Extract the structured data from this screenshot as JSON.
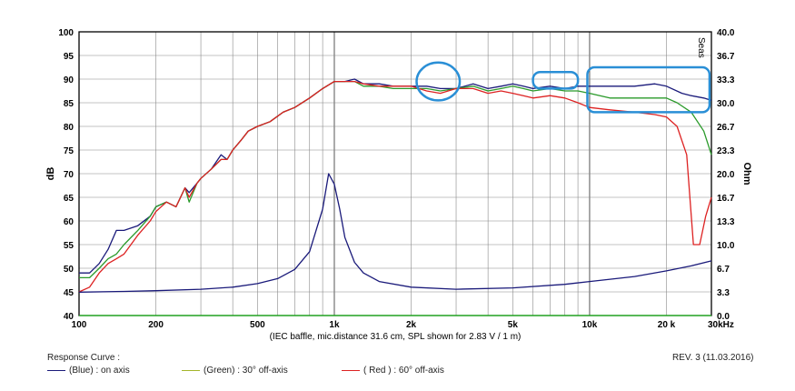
{
  "chart_data": {
    "type": "line",
    "title": "",
    "xlabel": "(IEC baffle, mic.distance 31.6 cm, SPL shown for 2.83 V / 1 m)",
    "ylabel": "dB",
    "y2label": "Ohm",
    "xscale": "log",
    "xlim": [
      100,
      30000
    ],
    "ylim": [
      40,
      100
    ],
    "y2lim": [
      0,
      40
    ],
    "x_ticks": [
      {
        "v": 100,
        "t": "100"
      },
      {
        "v": 200,
        "t": "200"
      },
      {
        "v": 500,
        "t": "500"
      },
      {
        "v": 1000,
        "t": "1k"
      },
      {
        "v": 2000,
        "t": "2k"
      },
      {
        "v": 5000,
        "t": "5k"
      },
      {
        "v": 10000,
        "t": "10k"
      },
      {
        "v": 20000,
        "t": "20 k"
      },
      {
        "v": 30000,
        "t": "30kHz"
      }
    ],
    "y_ticks": [
      "100",
      "95",
      "90",
      "85",
      "80",
      "75",
      "70",
      "65",
      "60",
      "55",
      "50",
      "45",
      "40"
    ],
    "y2_ticks": [
      "40.0",
      "36.7",
      "33.3",
      "30.0",
      "26.7",
      "23.3",
      "20.0",
      "16.7",
      "13.3",
      "10.0",
      "6.7",
      "3.3",
      "0.0"
    ],
    "watermark": "Seas",
    "grid": true,
    "series": [
      {
        "name": "(Blue) : on axis",
        "color": "#1a1a7a",
        "x": [
          100,
          110,
          120,
          130,
          140,
          150,
          170,
          190,
          200,
          220,
          240,
          260,
          270,
          290,
          300,
          330,
          360,
          380,
          400,
          430,
          460,
          500,
          560,
          630,
          700,
          800,
          900,
          1000,
          1100,
          1200,
          1300,
          1500,
          1700,
          2000,
          2300,
          2600,
          3000,
          3500,
          4000,
          4500,
          5000,
          5500,
          6000,
          7000,
          8000,
          9000,
          10000,
          12000,
          15000,
          18000,
          20000,
          23000,
          25000,
          28000,
          30000
        ],
        "y": [
          49,
          49,
          51,
          54,
          58,
          58,
          59,
          61,
          63,
          64,
          63,
          67,
          66,
          68,
          69,
          71,
          74,
          73,
          75,
          77,
          79,
          80,
          81,
          83,
          84,
          86,
          88,
          89.5,
          89.5,
          90,
          89,
          89,
          88.5,
          88.5,
          88.5,
          88,
          88,
          89,
          88,
          88.5,
          89,
          88.5,
          88,
          88.5,
          88,
          88.5,
          88.5,
          88.5,
          88.5,
          89,
          88.5,
          87,
          86.5,
          86,
          85.5
        ]
      },
      {
        "name": "(Green) : 30° off-axis",
        "color": "#2a9a2a",
        "x": [
          100,
          110,
          120,
          130,
          140,
          150,
          170,
          190,
          200,
          220,
          240,
          260,
          270,
          290,
          300,
          330,
          360,
          380,
          400,
          430,
          460,
          500,
          560,
          630,
          700,
          800,
          900,
          1000,
          1100,
          1200,
          1300,
          1500,
          1700,
          2000,
          2300,
          2600,
          3000,
          3500,
          4000,
          4500,
          5000,
          5500,
          6000,
          7000,
          8000,
          9000,
          10000,
          12000,
          15000,
          18000,
          20000,
          22000,
          25000,
          28000,
          30000
        ],
        "y": [
          48,
          48,
          50,
          52,
          53,
          55,
          58,
          61,
          63,
          64,
          63,
          67,
          64,
          68,
          69,
          71,
          73,
          73,
          75,
          77,
          79,
          80,
          81,
          83,
          84,
          86,
          88,
          89.5,
          89.5,
          89.5,
          88.5,
          88.5,
          88,
          88,
          88,
          87.5,
          88,
          88.5,
          87.5,
          88,
          88.5,
          88,
          87.5,
          88,
          87.5,
          87.5,
          87,
          86,
          86,
          86,
          86,
          85,
          83,
          79,
          74
        ]
      },
      {
        "name": "( Red ) : 60° off-axis",
        "color": "#dd2222",
        "x": [
          100,
          110,
          120,
          130,
          140,
          150,
          170,
          190,
          200,
          220,
          240,
          260,
          270,
          290,
          300,
          330,
          360,
          380,
          400,
          430,
          460,
          500,
          560,
          630,
          700,
          800,
          900,
          1000,
          1100,
          1200,
          1300,
          1500,
          1700,
          2000,
          2300,
          2600,
          3000,
          3500,
          4000,
          4500,
          5000,
          5500,
          6000,
          7000,
          8000,
          9000,
          10000,
          12000,
          15000,
          18000,
          20000,
          22000,
          24000,
          25500,
          27000,
          28500,
          30000
        ],
        "y": [
          45,
          46,
          49,
          51,
          52,
          53,
          57,
          60,
          62,
          64,
          63,
          67,
          65,
          68,
          69,
          71,
          73,
          73,
          75,
          77,
          79,
          80,
          81,
          83,
          84,
          86,
          88,
          89.5,
          89.5,
          89.5,
          89,
          88.5,
          88.5,
          88.5,
          87.5,
          87,
          88,
          88,
          87,
          87.5,
          87,
          86.5,
          86,
          86.5,
          86,
          85,
          84,
          83.5,
          83,
          82.5,
          82,
          80,
          74,
          55,
          55,
          61,
          65
        ]
      },
      {
        "name": "",
        "color": "#1a1a7a",
        "axis": "right",
        "x": [
          100,
          150,
          200,
          300,
          400,
          500,
          600,
          700,
          800,
          900,
          950,
          1000,
          1050,
          1100,
          1200,
          1300,
          1500,
          2000,
          3000,
          5000,
          8000,
          10000,
          15000,
          20000,
          25000,
          30000
        ],
        "y": [
          3.3,
          3.4,
          3.5,
          3.7,
          4.0,
          4.5,
          5.2,
          6.5,
          9.0,
          15.0,
          20.0,
          18.5,
          15.0,
          11.0,
          7.5,
          6.0,
          4.8,
          4.0,
          3.7,
          3.9,
          4.4,
          4.8,
          5.5,
          6.3,
          7.0,
          7.7
        ]
      },
      {
        "name": "",
        "color": "#22bb22",
        "axis": "right",
        "x": [
          100,
          30000
        ],
        "y": [
          0,
          0
        ]
      }
    ],
    "annotations": [
      {
        "shape": "ellipse",
        "color": "#2a8fd6",
        "x": [
          2100,
          3100
        ],
        "y": [
          85.5,
          93.5
        ]
      },
      {
        "shape": "rect",
        "color": "#2a8fd6",
        "x": [
          6000,
          9000
        ],
        "y": [
          88,
          91.5
        ]
      },
      {
        "shape": "rect",
        "color": "#2a8fd6",
        "x": [
          9800,
          29500
        ],
        "y": [
          83,
          92.5
        ]
      }
    ]
  },
  "footer": {
    "title": "Response Curve :",
    "rev": "REV. 3 (11.03.2016)",
    "legend": [
      {
        "label": "(Blue) : on axis",
        "color": "#1a1a7a"
      },
      {
        "label": "(Green) : 30° off-axis",
        "color": "#a4b52a"
      },
      {
        "label": "( Red ) : 60° off-axis",
        "color": "#dd2222"
      }
    ]
  }
}
